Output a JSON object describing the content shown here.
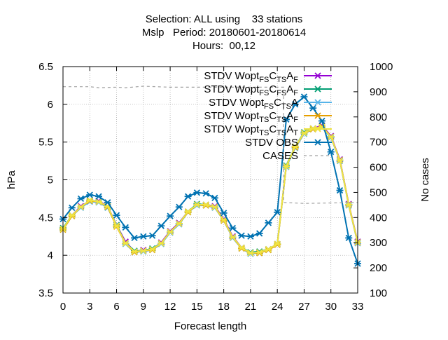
{
  "chart_data": {
    "type": "line",
    "title_lines": [
      "Selection: ALL using    33 stations",
      "Mslp   Period: 20180601-20180614",
      "Hours:  00,12"
    ],
    "xlabel": "Forecast length",
    "ylabel": "hPa",
    "y2label": "No cases",
    "xlim": [
      0,
      33
    ],
    "ylim": [
      3.5,
      6.5
    ],
    "y2lim": [
      100,
      1000
    ],
    "x_ticks": [
      "0",
      "3",
      "6",
      "9",
      "12",
      "15",
      "18",
      "21",
      "24",
      "27",
      "30",
      "33"
    ],
    "y_ticks": [
      "3.5",
      "4",
      "4.5",
      "5",
      "5.5",
      "6",
      "6.5"
    ],
    "y2_ticks": [
      "100",
      "200",
      "300",
      "400",
      "500",
      "600",
      "700",
      "800",
      "900",
      "1000"
    ],
    "grid": true,
    "legend_position": "top-right",
    "x": [
      0,
      1,
      2,
      3,
      4,
      5,
      6,
      7,
      8,
      9,
      10,
      11,
      12,
      13,
      14,
      15,
      16,
      17,
      18,
      19,
      20,
      21,
      22,
      23,
      24,
      25,
      26,
      27,
      28,
      29,
      30,
      31,
      32,
      33
    ],
    "series": [
      {
        "name_parts": [
          [
            "STDV Wopt",
            ""
          ],
          [
            "FS",
            "sub"
          ],
          [
            "C",
            ""
          ],
          [
            "TS",
            "sub"
          ],
          [
            "A",
            ""
          ],
          [
            "F",
            "sub"
          ]
        ],
        "color": "#9400d3",
        "marker": "x",
        "axis": "left",
        "values": [
          4.35,
          4.53,
          4.65,
          4.72,
          4.72,
          4.65,
          4.4,
          4.18,
          4.05,
          4.07,
          4.08,
          4.17,
          4.32,
          4.43,
          4.58,
          4.67,
          4.67,
          4.65,
          4.48,
          4.25,
          4.1,
          4.03,
          4.04,
          4.08,
          4.15,
          5.18,
          5.43,
          5.62,
          5.68,
          5.72,
          5.58,
          5.27,
          4.68,
          4.18
        ]
      },
      {
        "name_parts": [
          [
            "STDV Wopt",
            ""
          ],
          [
            "FS",
            "sub"
          ],
          [
            "C",
            ""
          ],
          [
            "FS",
            "sub"
          ],
          [
            "A",
            ""
          ],
          [
            "F",
            "sub"
          ]
        ],
        "color": "#009e73",
        "marker": "asterisk",
        "axis": "left",
        "values": [
          4.36,
          4.53,
          4.64,
          4.73,
          4.71,
          4.64,
          4.4,
          4.16,
          4.06,
          4.06,
          4.09,
          4.16,
          4.31,
          4.42,
          4.58,
          4.68,
          4.67,
          4.64,
          4.47,
          4.24,
          4.1,
          4.04,
          4.05,
          4.08,
          4.15,
          5.19,
          5.44,
          5.63,
          5.68,
          5.7,
          5.57,
          5.26,
          4.67,
          4.17
        ]
      },
      {
        "name_parts": [
          [
            "STDV Wopt",
            ""
          ],
          [
            "FS",
            "sub"
          ],
          [
            "C",
            ""
          ],
          [
            "TS",
            "sub"
          ],
          [
            "A",
            ""
          ]
        ],
        "color": "#56b4e9",
        "marker": "asterisk",
        "axis": "left",
        "values": [
          4.34,
          4.52,
          4.63,
          4.71,
          4.7,
          4.63,
          4.39,
          4.15,
          4.04,
          4.05,
          4.07,
          4.15,
          4.3,
          4.41,
          4.57,
          4.66,
          4.66,
          4.63,
          4.46,
          4.23,
          4.09,
          4.02,
          4.03,
          4.07,
          4.14,
          5.17,
          5.42,
          5.61,
          5.67,
          5.69,
          5.56,
          5.25,
          4.66,
          4.16
        ]
      },
      {
        "name_parts": [
          [
            "STDV Wopt",
            ""
          ],
          [
            "TS",
            "sub"
          ],
          [
            "C",
            ""
          ],
          [
            "TS",
            "sub"
          ],
          [
            "A",
            ""
          ],
          [
            "F",
            "sub"
          ]
        ],
        "color": "#e69f00",
        "marker": "asterisk",
        "axis": "left",
        "values": [
          4.34,
          4.52,
          4.64,
          4.72,
          4.71,
          4.64,
          4.38,
          4.16,
          4.04,
          4.06,
          4.07,
          4.16,
          4.31,
          4.42,
          4.57,
          4.67,
          4.66,
          4.64,
          4.46,
          4.24,
          4.09,
          4.03,
          4.03,
          4.07,
          4.14,
          5.18,
          5.43,
          5.62,
          5.67,
          5.71,
          5.57,
          5.26,
          4.67,
          4.17
        ]
      },
      {
        "name_parts": [
          [
            "STDV Wopt",
            ""
          ],
          [
            "TS",
            "sub"
          ],
          [
            "C",
            ""
          ],
          [
            "TS",
            "sub"
          ],
          [
            "A",
            ""
          ],
          [
            "T",
            "sub"
          ]
        ],
        "color": "#f0e442",
        "marker": "asterisk",
        "axis": "left",
        "values": [
          4.35,
          4.53,
          4.64,
          4.73,
          4.71,
          4.65,
          4.39,
          4.16,
          4.05,
          4.06,
          4.08,
          4.16,
          4.31,
          4.42,
          4.58,
          4.67,
          4.67,
          4.64,
          4.47,
          4.24,
          4.1,
          4.03,
          4.04,
          4.08,
          4.15,
          5.18,
          5.44,
          5.62,
          5.68,
          5.7,
          5.57,
          5.26,
          4.67,
          4.17
        ]
      },
      {
        "name_parts": [
          [
            "STDV OBS",
            ""
          ]
        ],
        "color": "#0072b2",
        "marker": "asterisk",
        "axis": "left",
        "values": [
          4.48,
          4.63,
          4.75,
          4.8,
          4.78,
          4.7,
          4.53,
          4.37,
          4.23,
          4.25,
          4.26,
          4.39,
          4.52,
          4.64,
          4.78,
          4.83,
          4.82,
          4.76,
          4.56,
          4.36,
          4.26,
          4.25,
          4.29,
          4.43,
          4.57,
          5.8,
          6.0,
          6.1,
          5.95,
          5.78,
          5.37,
          4.86,
          4.23,
          3.89
        ]
      },
      {
        "name_parts": [
          [
            "CASES",
            ""
          ]
        ],
        "color": "#a0a0a0",
        "marker": "none",
        "dashed": true,
        "axis": "right",
        "values": [
          [
            0,
            920
          ],
          [
            3,
            920
          ],
          [
            4,
            916
          ],
          [
            6,
            918
          ],
          [
            7,
            916
          ],
          [
            9,
            922
          ],
          [
            12,
            918
          ],
          [
            15,
            918
          ],
          [
            18,
            918
          ],
          [
            21,
            918
          ],
          [
            24,
            918
          ],
          [
            24.7,
            918
          ],
          [
            24.7,
            460
          ],
          [
            27,
            456
          ],
          [
            30,
            458
          ],
          [
            33,
            460
          ]
        ]
      }
    ]
  }
}
